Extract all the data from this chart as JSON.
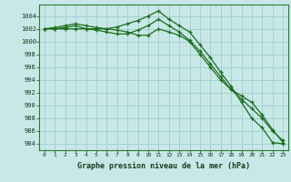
{
  "title": "Graphe pression niveau de la mer (hPa)",
  "background_color": "#c8e8e8",
  "grid_color": "#9ecece",
  "line_color": "#1a6e1a",
  "hours": [
    0,
    1,
    2,
    3,
    4,
    5,
    6,
    7,
    8,
    9,
    10,
    11,
    12,
    13,
    14,
    15,
    16,
    17,
    18,
    19,
    20,
    21,
    22,
    23
  ],
  "line1": [
    1002.0,
    1002.0,
    1002.2,
    1002.5,
    1002.0,
    1002.0,
    1002.0,
    1002.3,
    1002.8,
    1003.3,
    1004.0,
    1004.8,
    1003.5,
    1002.5,
    1001.5,
    999.5,
    997.5,
    995.2,
    993.0,
    990.5,
    988.0,
    986.5,
    984.2,
    984.0
  ],
  "line2": [
    1002.0,
    1002.0,
    1002.0,
    1002.0,
    1002.0,
    1001.8,
    1001.5,
    1001.2,
    1001.2,
    1001.8,
    1002.5,
    1003.5,
    1002.5,
    1001.5,
    1000.2,
    998.5,
    996.5,
    994.5,
    992.5,
    991.0,
    989.5,
    988.0,
    986.0,
    984.5
  ],
  "line3": [
    1002.0,
    1002.2,
    1002.5,
    1002.8,
    1002.5,
    1002.2,
    1002.0,
    1001.8,
    1001.5,
    1001.0,
    1001.0,
    1002.0,
    1001.5,
    1001.0,
    1000.0,
    998.0,
    996.0,
    994.0,
    992.5,
    991.5,
    990.5,
    988.5,
    986.2,
    984.2
  ],
  "ylim": [
    983.0,
    1005.8
  ],
  "yticks": [
    984,
    986,
    988,
    990,
    992,
    994,
    996,
    998,
    1000,
    1002,
    1004
  ],
  "xlim": [
    -0.5,
    23.5
  ],
  "xticks": [
    0,
    1,
    2,
    3,
    4,
    5,
    6,
    7,
    8,
    9,
    10,
    11,
    12,
    13,
    14,
    15,
    16,
    17,
    18,
    19,
    20,
    21,
    22,
    23
  ]
}
